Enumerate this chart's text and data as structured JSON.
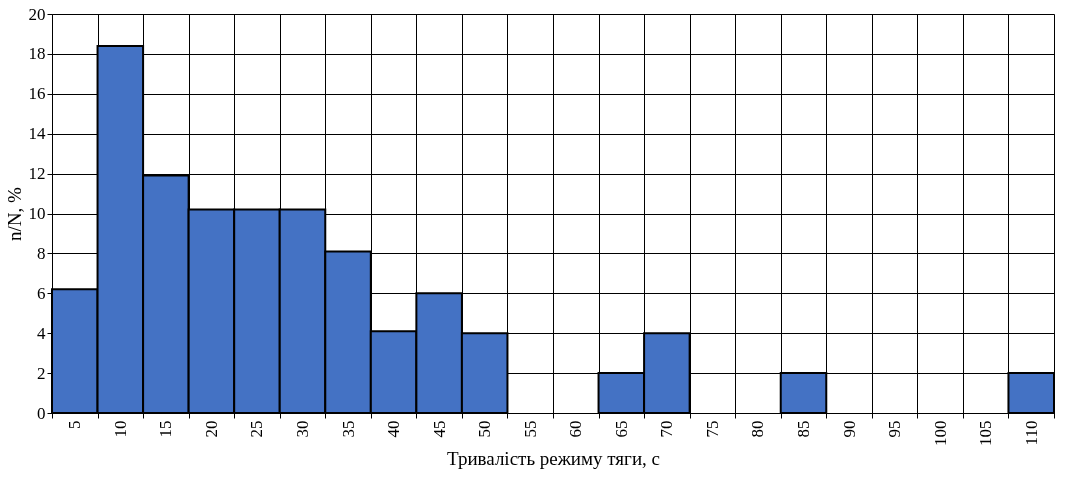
{
  "chart_data": {
    "type": "bar",
    "xlabel": "Тривалість режиму тяги, с",
    "ylabel": "n/N, %",
    "categories": [
      "5",
      "10",
      "15",
      "20",
      "25",
      "30",
      "35",
      "40",
      "45",
      "50",
      "55",
      "60",
      "65",
      "70",
      "75",
      "80",
      "85",
      "90",
      "95",
      "100",
      "105",
      "110"
    ],
    "values": [
      6.2,
      18.4,
      11.9,
      10.2,
      10.2,
      10.2,
      8.1,
      4.1,
      6.0,
      4.0,
      0,
      0,
      2.0,
      4.0,
      0,
      0,
      2.0,
      0,
      0,
      0,
      0,
      2.0
    ],
    "color": "#4472c4",
    "ylim": [
      0,
      20
    ],
    "yticks": [
      0,
      2,
      4,
      6,
      8,
      10,
      12,
      14,
      16,
      18,
      20
    ],
    "grid": true
  }
}
